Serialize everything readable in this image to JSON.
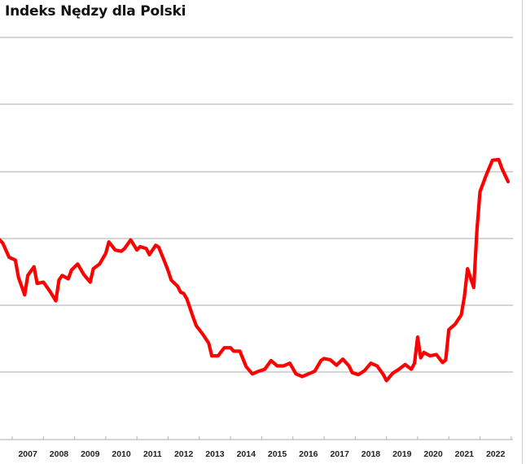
{
  "header": {
    "title": "Indeks Nędzy dla Polski"
  },
  "colors": {
    "line": "#ff0000",
    "gridline": "#bdbdbd",
    "axis": "#bdbdbd",
    "text": "#222222",
    "background": "#ffffff"
  },
  "axis": {
    "x_labels": [
      "2007",
      "2008",
      "2009",
      "2010",
      "2011",
      "2012",
      "2013",
      "2014",
      "2015",
      "2016",
      "2017",
      "2018",
      "2019",
      "2020",
      "2021",
      "2022"
    ]
  },
  "chart_data": {
    "type": "line",
    "title": "Indeks Nędzy dla Polski",
    "xlabel": "",
    "ylabel": "",
    "y_units_note": "No y-axis tick labels visible; values expressed in gridline units (x-axis = 0, each horizontal gridline = 1 unit, top gridline = 6).",
    "ylim": [
      0,
      6
    ],
    "grid": true,
    "legend": "none",
    "categories": [
      "2007",
      "2008",
      "2009",
      "2010",
      "2011",
      "2012",
      "2013",
      "2014",
      "2015",
      "2016",
      "2017",
      "2018",
      "2019",
      "2020",
      "2021",
      "2022"
    ],
    "series": [
      {
        "name": "Indeks Nędzy dla Polski",
        "color": "#ff0000",
        "x": [
          2006.6,
          2006.7,
          2006.9,
          2007.1,
          2007.2,
          2007.4,
          2007.5,
          2007.7,
          2007.8,
          2008.0,
          2008.2,
          2008.4,
          2008.5,
          2008.6,
          2008.8,
          2008.9,
          2009.1,
          2009.3,
          2009.5,
          2009.6,
          2009.8,
          2010.0,
          2010.1,
          2010.3,
          2010.5,
          2010.6,
          2010.8,
          2011.0,
          2011.1,
          2011.3,
          2011.4,
          2011.6,
          2011.7,
          2011.9,
          2012.0,
          2012.1,
          2012.3,
          2012.4,
          2012.5,
          2012.6,
          2012.8,
          2012.9,
          2013.1,
          2013.3,
          2013.4,
          2013.6,
          2013.8,
          2014.0,
          2014.1,
          2014.3,
          2014.5,
          2014.7,
          2014.9,
          2015.1,
          2015.3,
          2015.5,
          2015.7,
          2015.9,
          2016.1,
          2016.3,
          2016.5,
          2016.7,
          2016.9,
          2017.0,
          2017.2,
          2017.4,
          2017.6,
          2017.8,
          2017.9,
          2018.1,
          2018.3,
          2018.5,
          2018.7,
          2018.9,
          2019.0,
          2019.2,
          2019.4,
          2019.6,
          2019.8,
          2019.9,
          2020.0,
          2020.1,
          2020.2,
          2020.4,
          2020.6,
          2020.8,
          2020.9,
          2021.0,
          2021.2,
          2021.4,
          2021.5,
          2021.6,
          2021.8,
          2021.9,
          2022.0,
          2022.2,
          2022.4,
          2022.6,
          2022.7,
          2022.9
        ],
        "values": [
          2.98,
          2.93,
          2.72,
          2.68,
          2.42,
          2.16,
          2.45,
          2.58,
          2.33,
          2.35,
          2.22,
          2.07,
          2.38,
          2.45,
          2.4,
          2.53,
          2.62,
          2.46,
          2.35,
          2.55,
          2.62,
          2.78,
          2.95,
          2.83,
          2.81,
          2.85,
          2.98,
          2.83,
          2.88,
          2.85,
          2.76,
          2.9,
          2.87,
          2.64,
          2.52,
          2.38,
          2.29,
          2.2,
          2.18,
          2.1,
          1.83,
          1.7,
          1.58,
          1.44,
          1.25,
          1.25,
          1.37,
          1.37,
          1.32,
          1.32,
          1.09,
          0.98,
          1.02,
          1.05,
          1.18,
          1.1,
          1.1,
          1.14,
          0.98,
          0.94,
          0.98,
          1.02,
          1.18,
          1.21,
          1.19,
          1.11,
          1.2,
          1.1,
          1.0,
          0.97,
          1.03,
          1.14,
          1.1,
          0.97,
          0.88,
          0.99,
          1.05,
          1.12,
          1.05,
          1.14,
          1.53,
          1.22,
          1.3,
          1.25,
          1.27,
          1.15,
          1.19,
          1.64,
          1.72,
          1.86,
          2.13,
          2.55,
          2.27,
          3.12,
          3.7,
          3.95,
          4.17,
          4.18,
          4.05,
          3.85
        ]
      }
    ]
  }
}
